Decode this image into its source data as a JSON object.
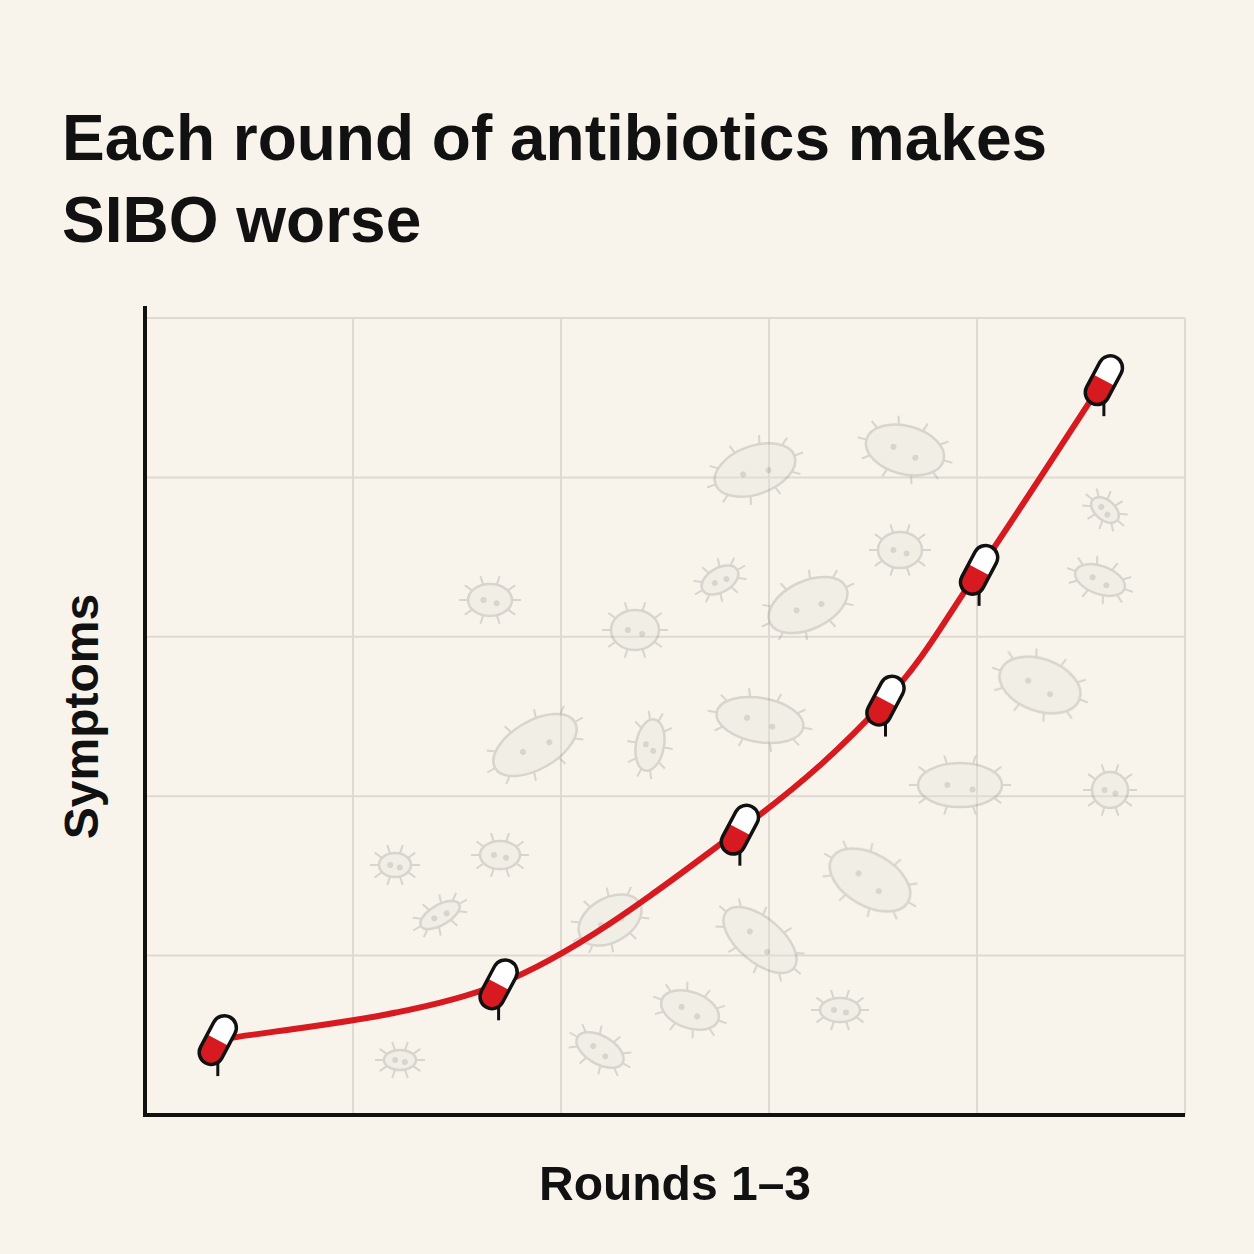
{
  "chart_data": {
    "type": "line",
    "title": "Each round of antibiotics makes SIBO worse",
    "x_label": "Rounds 1–3",
    "y_label": "Symptoms",
    "x": [
      0.35,
      1.7,
      2.86,
      3.56,
      4.01,
      4.61
    ],
    "values": [
      0.47,
      0.82,
      1.79,
      2.6,
      3.42,
      4.61
    ],
    "xlim": [
      0,
      5
    ],
    "xticks": [
      0,
      1,
      2,
      3,
      4,
      5
    ],
    "ylim": [
      0,
      5
    ],
    "yticks": [
      0,
      1,
      2,
      3,
      4,
      5
    ],
    "grid": true,
    "tick_labels": false,
    "color": "#d71920",
    "marker": "pill"
  }
}
